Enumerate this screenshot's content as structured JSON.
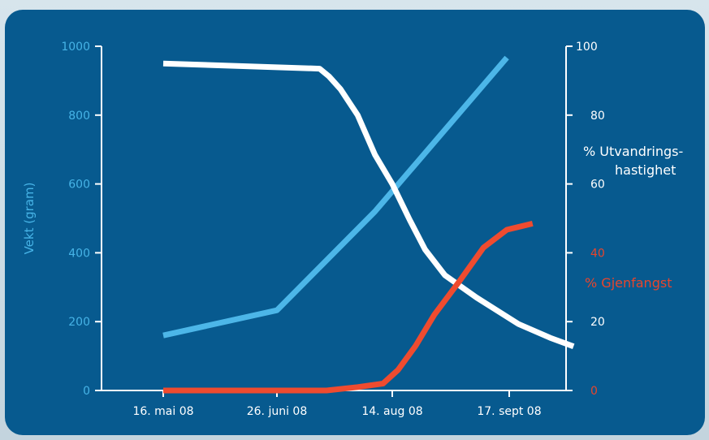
{
  "chart_data": {
    "type": "line",
    "categories": [
      "16. mai 08",
      "26. juni 08",
      "14. aug 08",
      "17. sept 08"
    ],
    "ylabel": "Vekt (gram)",
    "ylim": [
      0,
      1000
    ],
    "y_ticks": [
      "0",
      "200",
      "400",
      "600",
      "800",
      "1000"
    ],
    "y2lim": [
      0,
      100
    ],
    "y2_ticks": [
      "0",
      "20",
      "40",
      "60",
      "80",
      "100"
    ],
    "y2_ticks_red": [
      "0",
      "40"
    ],
    "y2_label_1_line1": "% Utvandrings-",
    "y2_label_1_line2": "hastighet",
    "y2_label_2": "% Gjenfangst",
    "series": [
      {
        "key": "vekt",
        "axis": "left",
        "color": "#4cb6e8",
        "points": [
          [
            0,
            160
          ],
          [
            1,
            233
          ],
          [
            1.85,
            520
          ],
          [
            2.98,
            967
          ]
        ]
      },
      {
        "key": "utvandring",
        "axis": "right",
        "color": "#ffffff",
        "points": [
          [
            0,
            95
          ],
          [
            1.37,
            93.5
          ],
          [
            1.45,
            91.3
          ],
          [
            1.55,
            87.6
          ],
          [
            1.7,
            80
          ],
          [
            1.85,
            68.5
          ],
          [
            2.0,
            60
          ],
          [
            2.15,
            49.5
          ],
          [
            2.28,
            41
          ],
          [
            2.45,
            33.5
          ],
          [
            2.72,
            27
          ],
          [
            3.08,
            19.3
          ],
          [
            3.35,
            15.3
          ],
          [
            3.55,
            12.8
          ]
        ]
      },
      {
        "key": "gjenfangst",
        "axis": "right",
        "color": "#ef4b2f",
        "points": [
          [
            0,
            0
          ],
          [
            1.43,
            0
          ],
          [
            1.7,
            1
          ],
          [
            1.92,
            2
          ],
          [
            2.05,
            6
          ],
          [
            2.2,
            13
          ],
          [
            2.36,
            22
          ],
          [
            2.58,
            32
          ],
          [
            2.78,
            41.5
          ],
          [
            2.98,
            46.7
          ],
          [
            3.2,
            48.5
          ]
        ]
      }
    ],
    "grid": false,
    "legend": "right"
  }
}
